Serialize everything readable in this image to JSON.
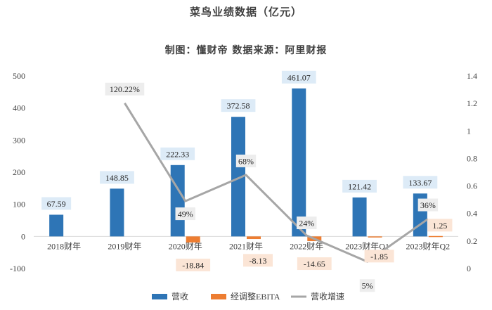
{
  "chart_data": {
    "type": "bar",
    "title": "菜鸟业绩数据（亿元）",
    "subtitle": "制图：懂财帝   数据来源：阿里财报",
    "categories": [
      "2018财年",
      "2019财年",
      "2020财年",
      "2021财年",
      "2022财年",
      "2023财年Q1",
      "2023财年Q2"
    ],
    "series": [
      {
        "name": "营收",
        "kind": "bar",
        "axis": "left",
        "color": "#2E75B6",
        "values": [
          67.59,
          148.85,
          222.33,
          372.58,
          461.07,
          121.42,
          133.67
        ],
        "labels": [
          "67.59",
          "148.85",
          "222.33",
          "372.58",
          "461.07",
          "121.42",
          "133.67"
        ]
      },
      {
        "name": "经调整EBITA",
        "kind": "bar",
        "axis": "left",
        "color": "#ED7D31",
        "values": [
          null,
          null,
          -18.84,
          -8.13,
          -14.65,
          -1.85,
          1.25
        ],
        "labels": [
          "",
          "",
          "-18.84",
          "-8.13",
          "-14.65",
          "-1.85",
          "1.25"
        ]
      },
      {
        "name": "营收增速",
        "kind": "line",
        "axis": "right",
        "color": "#A6A6A6",
        "values": [
          null,
          1.2022,
          0.49,
          0.68,
          0.24,
          0.05,
          0.36
        ],
        "labels": [
          "",
          "120.22%",
          "49%",
          "68%",
          "24%",
          "5%",
          "36%"
        ]
      }
    ],
    "y_left": {
      "min": -100,
      "max": 500,
      "ticks": [
        "-100",
        "0",
        "100",
        "200",
        "300",
        "400",
        "500"
      ]
    },
    "y_right": {
      "min": 0,
      "max": 1.4,
      "ticks": [
        "0",
        "0.2",
        "0.4",
        "0.6",
        "0.8",
        "1",
        "1.2",
        "1.4"
      ]
    },
    "grid": false,
    "legend_position": "bottom"
  }
}
